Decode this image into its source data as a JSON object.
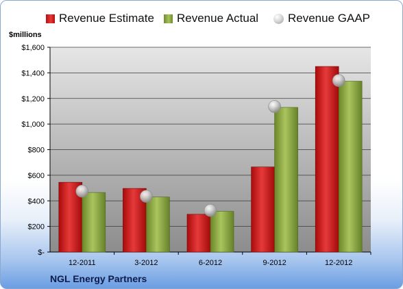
{
  "chart_data": {
    "type": "bar",
    "units_label": "$millions",
    "categories": [
      "12-2011",
      "3-2012",
      "6-2012",
      "9-2012",
      "12-2012"
    ],
    "series": [
      {
        "name": "Revenue Estimate",
        "kind": "bar",
        "color": "#cc1f1f",
        "values": [
          545,
          497,
          295,
          665,
          1450
        ]
      },
      {
        "name": "Revenue Actual",
        "kind": "bar",
        "color": "#8fab43",
        "values": [
          465,
          430,
          318,
          1130,
          1335
        ]
      },
      {
        "name": "Revenue GAAP",
        "kind": "marker",
        "color": "#bdbdbd",
        "values": [
          475,
          435,
          325,
          1137,
          1340
        ]
      }
    ],
    "y_ticks": [
      "$-",
      "$200",
      "$400",
      "$600",
      "$800",
      "$1,000",
      "$1,200",
      "$1,400",
      "$1,600"
    ],
    "ylim": [
      0,
      1600
    ],
    "y_step": 200,
    "grid": true,
    "legend_position": "top"
  },
  "footer": {
    "company": "NGL Energy Partners"
  },
  "colors": {
    "plot_top": "#e6e6e6",
    "plot_bottom": "#8c8c8c",
    "footer_blue": "#6b9ee3"
  }
}
